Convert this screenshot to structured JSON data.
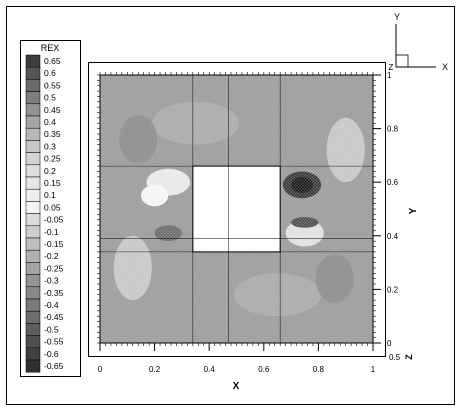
{
  "chart_data": {
    "type": "heatmap",
    "title": "",
    "xlabel": "X",
    "ylabel": "Y",
    "xlim": [
      0,
      1
    ],
    "ylim": [
      0,
      1
    ],
    "x_ticks": [
      "0",
      "0.2",
      "0.4",
      "0.6",
      "0.8",
      "1"
    ],
    "y_ticks": [
      "0",
      "0.2",
      "0.4",
      "0.6",
      "0.8",
      "1"
    ],
    "z_label": "Z",
    "z_tick": "0.5",
    "obstacle": {
      "x": [
        0.34,
        0.66
      ],
      "y": [
        0.34,
        0.66
      ]
    },
    "grid_lines": {
      "x": [
        0.34,
        0.47,
        0.66
      ],
      "y": [
        0.34,
        0.39,
        0.66
      ]
    },
    "axes_triad": {
      "y": "Y",
      "x": "X",
      "origin": "Z"
    },
    "legend": {
      "title": "REX",
      "position": "left",
      "levels": [
        "0.65",
        "0.6",
        "0.55",
        "0.5",
        "0.45",
        "0.4",
        "0.35",
        "0.3",
        "0.25",
        "0.2",
        "0.15",
        "0.1",
        "0.05",
        "-0.05",
        "-0.1",
        "-0.15",
        "-0.2",
        "-0.25",
        "-0.3",
        "-0.35",
        "-0.4",
        "-0.45",
        "-0.5",
        "-0.55",
        "-0.6",
        "-0.65"
      ],
      "colors": [
        "#3c3c3c",
        "#555555",
        "#6a6a6a",
        "#7e7e7e",
        "#929292",
        "#a6a6a6",
        "#b8b8b8",
        "#c8c8c8",
        "#d4d4d4",
        "#dedede",
        "#e6e6e6",
        "#eeeeee",
        "#f4f4f4",
        "#dcdcdc",
        "#cdcdcd",
        "#bebebe",
        "#b0b0b0",
        "#a3a3a3",
        "#959595",
        "#888888",
        "#7b7b7b",
        "#6d6d6d",
        "#5e5e5e",
        "#4f4f4f",
        "#404040",
        "#303030"
      ]
    },
    "field_base_color": "#9b9b9b",
    "features": [
      {
        "kind": "ellipse",
        "cx": 0.25,
        "cy": 0.6,
        "rx": 0.08,
        "ry": 0.05,
        "color": "#e8e8e8"
      },
      {
        "kind": "ellipse",
        "cx": 0.2,
        "cy": 0.55,
        "rx": 0.05,
        "ry": 0.04,
        "color": "#f4f4f4"
      },
      {
        "kind": "ellipse",
        "cx": 0.25,
        "cy": 0.41,
        "rx": 0.05,
        "ry": 0.03,
        "color": "#6d6d6d"
      },
      {
        "kind": "ellipse",
        "cx": 0.74,
        "cy": 0.59,
        "rx": 0.07,
        "ry": 0.05,
        "color": "#3c3c3c"
      },
      {
        "kind": "ellipse",
        "cx": 0.74,
        "cy": 0.59,
        "rx": 0.04,
        "ry": 0.03,
        "color": "#1e1e1e"
      },
      {
        "kind": "ellipse",
        "cx": 0.75,
        "cy": 0.41,
        "rx": 0.07,
        "ry": 0.05,
        "color": "#e0e0e0"
      },
      {
        "kind": "ellipse",
        "cx": 0.75,
        "cy": 0.45,
        "rx": 0.05,
        "ry": 0.02,
        "color": "#505050"
      },
      {
        "kind": "ellipse",
        "cx": 0.12,
        "cy": 0.28,
        "rx": 0.07,
        "ry": 0.12,
        "color": "#c6c6c6"
      },
      {
        "kind": "ellipse",
        "cx": 0.9,
        "cy": 0.72,
        "rx": 0.07,
        "ry": 0.12,
        "color": "#c6c6c6"
      },
      {
        "kind": "ellipse",
        "cx": 0.35,
        "cy": 0.82,
        "rx": 0.16,
        "ry": 0.08,
        "color": "#a9a9a9"
      },
      {
        "kind": "ellipse",
        "cx": 0.65,
        "cy": 0.18,
        "rx": 0.16,
        "ry": 0.08,
        "color": "#a9a9a9"
      },
      {
        "kind": "ellipse",
        "cx": 0.86,
        "cy": 0.24,
        "rx": 0.07,
        "ry": 0.09,
        "color": "#8c8c8c"
      },
      {
        "kind": "ellipse",
        "cx": 0.14,
        "cy": 0.76,
        "rx": 0.07,
        "ry": 0.09,
        "color": "#8c8c8c"
      }
    ]
  }
}
